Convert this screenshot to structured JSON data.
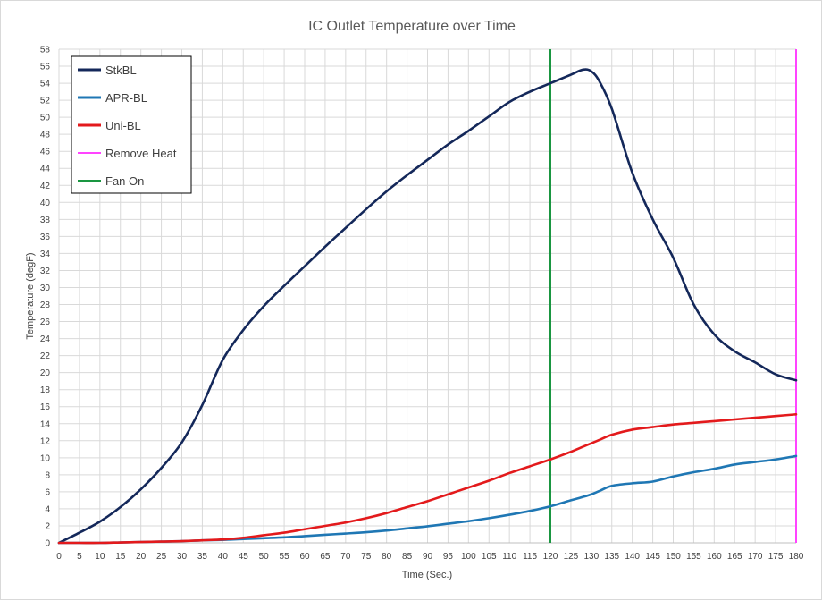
{
  "chart_data": {
    "type": "line",
    "title": "IC Outlet Temperature over Time",
    "xlabel": "Time (Sec.)",
    "ylabel": "Temperature (degF)",
    "xlim": [
      0,
      180
    ],
    "ylim": [
      0,
      58
    ],
    "x_ticks": [
      0,
      5,
      10,
      15,
      20,
      25,
      30,
      35,
      40,
      45,
      50,
      55,
      60,
      65,
      70,
      75,
      80,
      85,
      90,
      95,
      100,
      105,
      110,
      115,
      120,
      125,
      130,
      135,
      140,
      145,
      150,
      155,
      160,
      165,
      170,
      175,
      180
    ],
    "y_ticks": [
      0,
      2,
      4,
      6,
      8,
      10,
      12,
      14,
      16,
      18,
      20,
      22,
      24,
      26,
      28,
      30,
      32,
      34,
      36,
      38,
      40,
      42,
      44,
      46,
      48,
      50,
      52,
      54,
      56,
      58
    ],
    "grid": true,
    "legend_position": "top-left",
    "x": [
      0,
      5,
      10,
      15,
      20,
      25,
      30,
      35,
      40,
      45,
      50,
      55,
      60,
      65,
      70,
      75,
      80,
      85,
      90,
      95,
      100,
      105,
      110,
      115,
      120,
      125,
      128,
      130,
      132,
      135,
      140,
      145,
      150,
      155,
      160,
      165,
      170,
      175,
      180
    ],
    "series": [
      {
        "name": "StkBL",
        "color": "#14285a",
        "values": [
          0,
          1.2,
          2.5,
          4.2,
          6.3,
          8.8,
          11.8,
          16.2,
          21.5,
          25.0,
          27.8,
          30.2,
          32.5,
          34.8,
          37.0,
          39.2,
          41.3,
          43.2,
          45.0,
          46.8,
          48.4,
          50.1,
          51.8,
          53.0,
          54.0,
          55.0,
          55.6,
          55.4,
          54.2,
          51.0,
          43.5,
          38.0,
          33.5,
          28.0,
          24.5,
          22.5,
          21.2,
          19.8,
          19.1
        ]
      },
      {
        "name": "APR-BL",
        "color": "#1f77b4",
        "values": [
          0,
          0,
          0,
          0.05,
          0.1,
          0.15,
          0.2,
          0.3,
          0.35,
          0.45,
          0.55,
          0.65,
          0.8,
          0.95,
          1.1,
          1.25,
          1.45,
          1.7,
          1.95,
          2.25,
          2.55,
          2.9,
          3.3,
          3.75,
          4.3,
          5.0,
          5.4,
          5.7,
          6.1,
          6.7,
          7.0,
          7.2,
          7.8,
          8.3,
          8.7,
          9.2,
          9.5,
          9.8,
          10.2
        ]
      },
      {
        "name": "Uni-BL",
        "color": "#e31a1c",
        "values": [
          0,
          0,
          0,
          0.05,
          0.1,
          0.15,
          0.2,
          0.3,
          0.4,
          0.6,
          0.9,
          1.2,
          1.6,
          2.0,
          2.4,
          2.9,
          3.5,
          4.2,
          4.9,
          5.7,
          6.5,
          7.3,
          8.2,
          9.0,
          9.8,
          10.7,
          11.3,
          11.7,
          12.1,
          12.7,
          13.3,
          13.6,
          13.9,
          14.1,
          14.3,
          14.5,
          14.7,
          14.9,
          15.1
        ]
      }
    ],
    "vertical_lines": [
      {
        "name": "Remove Heat",
        "x": 180,
        "color": "#ff44ff"
      },
      {
        "name": "Fan On",
        "x": 120,
        "color": "#1a9641"
      }
    ],
    "legend": [
      "StkBL",
      "APR-BL",
      "Uni-BL",
      "Remove Heat",
      "Fan On"
    ]
  }
}
